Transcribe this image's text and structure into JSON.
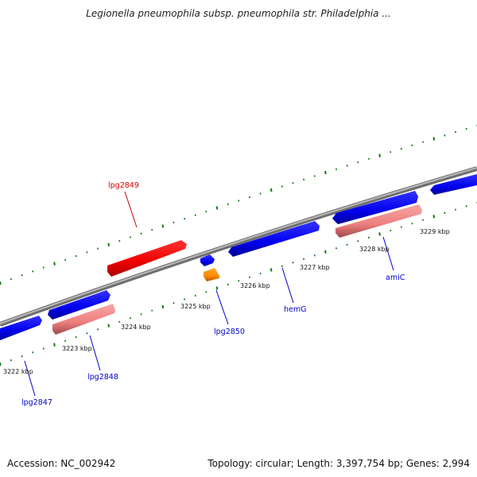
{
  "title": "Legionella pneumophila subsp. pneumophila str. Philadelphia ...",
  "footer": {
    "accession": "Accession: NC_002942",
    "stats": "Topology: circular; Length: 3,397,754 bp; Genes: 2,994"
  },
  "colors": {
    "backbone": "#999999",
    "gene_forward": "#0000ff",
    "gene_reverse": "#0000ff",
    "gene_highlight": "#ff0000",
    "rna_pink": "#f08080",
    "orange_feature": "#ff8c00",
    "tick": "#117711",
    "label_blue": "#0000cc",
    "label_red": "#dd0000"
  },
  "kbp_ticks": [
    {
      "label": "3222 kbp",
      "kbp": 3222
    },
    {
      "label": "3223 kbp",
      "kbp": 3223
    },
    {
      "label": "3224 kbp",
      "kbp": 3224
    },
    {
      "label": "3225 kbp",
      "kbp": 3225
    },
    {
      "label": "3226 kbp",
      "kbp": 3226
    },
    {
      "label": "3227 kbp",
      "kbp": 3227
    },
    {
      "label": "3228 kbp",
      "kbp": 3228
    },
    {
      "label": "3229 kbp",
      "kbp": 3229
    }
  ],
  "features": [
    {
      "id": "f1",
      "name": "",
      "type": "gene",
      "strand": "forward",
      "color": "gene_forward"
    },
    {
      "id": "f2",
      "name": "",
      "type": "gene",
      "strand": "forward",
      "color": "gene_forward"
    },
    {
      "id": "f3",
      "name": "",
      "type": "rna",
      "strand": "forward",
      "color": "rna_pink"
    },
    {
      "id": "f4",
      "name": "lpg2849",
      "type": "gene",
      "strand": "reverse",
      "color": "gene_highlight"
    },
    {
      "id": "f5",
      "name": "",
      "type": "gene",
      "strand": "forward",
      "color": "gene_forward"
    },
    {
      "id": "f6",
      "name": "",
      "type": "other",
      "strand": "forward",
      "color": "orange_feature"
    },
    {
      "id": "f7",
      "name": "",
      "type": "gene",
      "strand": "forward",
      "color": "gene_forward"
    },
    {
      "id": "f8",
      "name": "",
      "type": "gene",
      "strand": "forward",
      "color": "gene_forward"
    },
    {
      "id": "f9",
      "name": "",
      "type": "rna",
      "strand": "forward",
      "color": "rna_pink"
    },
    {
      "id": "f10",
      "name": "",
      "type": "gene",
      "strand": "forward",
      "color": "gene_forward"
    }
  ],
  "feature_labels": [
    {
      "name": "lpg2849",
      "color": "label_red"
    },
    {
      "name": "lpg2847",
      "color": "label_blue"
    },
    {
      "name": "lpg2848",
      "color": "label_blue"
    },
    {
      "name": "lpg2850",
      "color": "label_blue"
    },
    {
      "name": "hemG",
      "color": "label_blue"
    },
    {
      "name": "amiC",
      "color": "label_blue"
    }
  ]
}
